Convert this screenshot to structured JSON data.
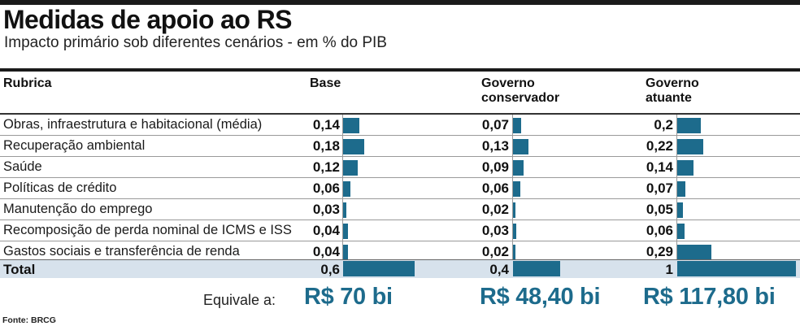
{
  "chart_data": {
    "type": "table",
    "title": "Medidas de apoio ao RS",
    "subtitle": "Impacto primário sob diferentes cenários - em % do PIB",
    "row_header": "Rubrica",
    "columns": [
      "Base",
      "Governo conservador",
      "Governo atuante"
    ],
    "rows": [
      {
        "label": "Obras, infraestrutura e habitacional (média)",
        "values": [
          0.14,
          0.07,
          0.2
        ],
        "display": [
          "0,14",
          "0,07",
          "0,2"
        ]
      },
      {
        "label": "Recuperação ambiental",
        "values": [
          0.18,
          0.13,
          0.22
        ],
        "display": [
          "0,18",
          "0,13",
          "0,22"
        ]
      },
      {
        "label": "Saúde",
        "values": [
          0.12,
          0.09,
          0.14
        ],
        "display": [
          "0,12",
          "0,09",
          "0,14"
        ]
      },
      {
        "label": "Políticas de crédito",
        "values": [
          0.06,
          0.06,
          0.07
        ],
        "display": [
          "0,06",
          "0,06",
          "0,07"
        ]
      },
      {
        "label": "Manutenção do emprego",
        "values": [
          0.03,
          0.02,
          0.05
        ],
        "display": [
          "0,03",
          "0,02",
          "0,05"
        ]
      },
      {
        "label": "Recomposição de perda nominal de ICMS e ISS",
        "values": [
          0.04,
          0.03,
          0.06
        ],
        "display": [
          "0,04",
          "0,03",
          "0,06"
        ]
      },
      {
        "label": "Gastos sociais e transferência de renda",
        "values": [
          0.04,
          0.02,
          0.29
        ],
        "display": [
          "0,04",
          "0,02",
          "0,29"
        ]
      }
    ],
    "total": {
      "label": "Total",
      "values": [
        0.6,
        0.4,
        1
      ],
      "display": [
        "0,6",
        "0,4",
        "1"
      ]
    },
    "equivalent_label": "Equivale a:",
    "equivalents": [
      "R$ 70 bi",
      "R$ 48,40 bi",
      "R$ 117,80 bi"
    ],
    "bar_color": "#1d6b8c",
    "source": "Fonte: BRCG"
  }
}
